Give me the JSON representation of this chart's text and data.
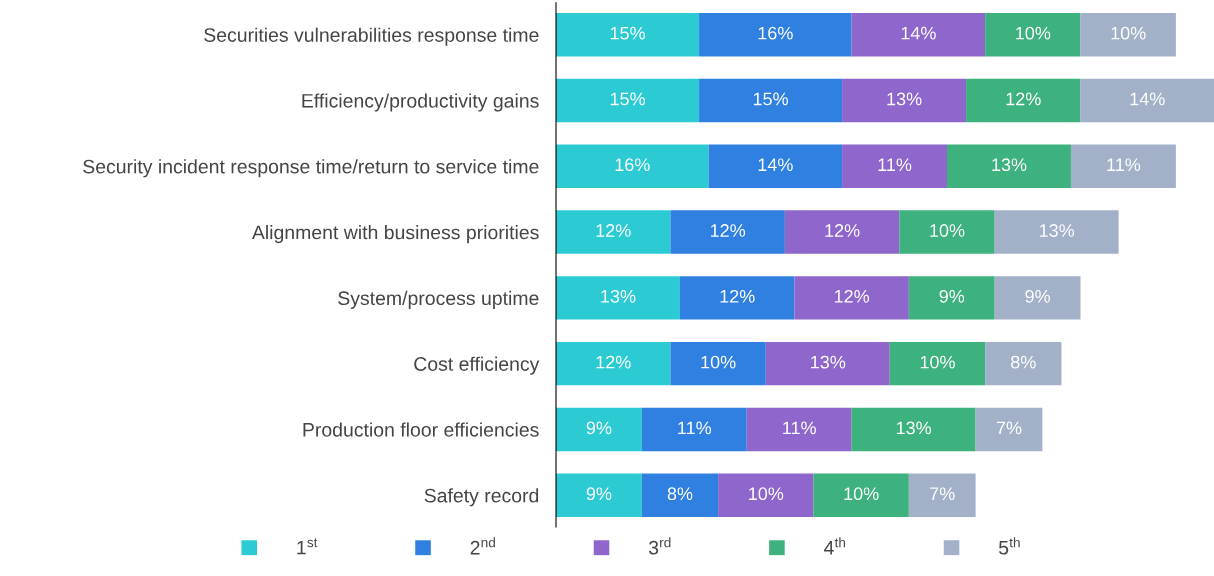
{
  "chart_data": {
    "type": "bar",
    "orientation": "horizontal",
    "stacked": true,
    "legend": "bottom",
    "grid": false,
    "categories": [
      "Securities vulnerabilities response time",
      "Efficiency/productivity gains",
      "Security incident response time/return to service time",
      "Alignment with business priorities",
      "System/process uptime",
      "Cost efficiency",
      "Production floor efficiencies",
      "Safety record"
    ],
    "series": [
      {
        "name": "1$^{st}$",
        "color": "#2ccbd3",
        "values": [
          15,
          15,
          16,
          12,
          13,
          12,
          9,
          9
        ],
        "value_labels": [
          "15%",
          "15%",
          "16%",
          "12%",
          "13%",
          "12%",
          "9%",
          "9%"
        ]
      },
      {
        "name": "2$^{nd}$",
        "color": "#3080e2",
        "values": [
          16,
          15,
          14,
          12,
          12,
          10,
          11,
          8
        ],
        "value_labels": [
          "16%",
          "15%",
          "14%",
          "12%",
          "12%",
          "10%",
          "11%",
          "8%"
        ]
      },
      {
        "name": "3$^{rd}$",
        "color": "#8f66cc",
        "values": [
          14,
          13,
          11,
          12,
          12,
          13,
          11,
          10
        ],
        "value_labels": [
          "14%",
          "13%",
          "11%",
          "12%",
          "12%",
          "13%",
          "11%",
          "10%"
        ]
      },
      {
        "name": "4$^{th}$",
        "color": "#3db27e",
        "values": [
          10,
          12,
          13,
          10,
          9,
          10,
          13,
          10
        ],
        "value_labels": [
          "10%",
          "12%",
          "13%",
          "10%",
          "9%",
          "10%",
          "13%",
          "10%"
        ]
      },
      {
        "name": "5$^{th}$",
        "color": "#a2b1c8",
        "values": [
          10,
          14,
          11,
          13,
          9,
          8,
          7,
          7
        ],
        "value_labels": [
          "10%",
          "14%",
          "11%",
          "13%",
          "9%",
          "8%",
          "7%",
          "7%"
        ]
      }
    ]
  }
}
